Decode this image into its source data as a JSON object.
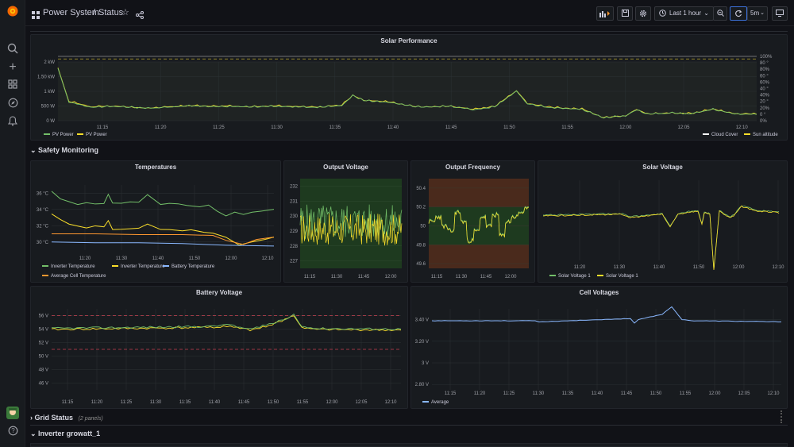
{
  "breadcrumb": {
    "folder": "Power System",
    "separator": "/",
    "dashboard": "Status"
  },
  "toolbar": {
    "time_range": "Last 1 hour",
    "refresh": "5m"
  },
  "rows": {
    "safety": "Safety Monitoring",
    "grid": "Grid Status",
    "grid_note": "(2 panels)",
    "inverter": "Inverter growatt_1"
  },
  "colors": {
    "green": "#73bf69",
    "yellow": "#fade2a",
    "blue": "#8ab8ff",
    "orange": "#ff9830",
    "white": "#ffffff",
    "red": "#f2495c"
  },
  "chart_data": [
    {
      "id": "solar",
      "type": "line",
      "title": "Solar Performance",
      "xticks": [
        "11:15",
        "11:20",
        "11:25",
        "11:30",
        "11:35",
        "11:40",
        "11:45",
        "11:50",
        "11:55",
        "12:00",
        "12:05",
        "12:10"
      ],
      "yleft": {
        "ticks": [
          "2 kW",
          "1.50 kW",
          "1 kW",
          "500 W",
          "0 W"
        ],
        "range": [
          0,
          2000
        ]
      },
      "yright": {
        "ticks": [
          "100%",
          "80 °",
          "80%",
          "60 °",
          "60%",
          "40 °",
          "40%",
          "20 °",
          "20%",
          "0 °",
          "0%"
        ],
        "range": [
          0,
          100
        ]
      },
      "legend_left": [
        "PV Power",
        "PV Power"
      ],
      "legend_right": [
        "Cloud Cover",
        "Sun altitude"
      ],
      "series": [
        {
          "name": "PV Power",
          "color": "yellow",
          "x": [
            0,
            1,
            2,
            3,
            5,
            8,
            10,
            12,
            14,
            16,
            18,
            20,
            22,
            24,
            26,
            27,
            28,
            30,
            33,
            36,
            38,
            40,
            42,
            43,
            45,
            48,
            50,
            52,
            53,
            54,
            56,
            58,
            60,
            62,
            64
          ],
          "y": [
            1800,
            650,
            570,
            460,
            490,
            430,
            460,
            510,
            480,
            490,
            470,
            500,
            470,
            460,
            520,
            860,
            690,
            640,
            470,
            490,
            380,
            470,
            1020,
            580,
            450,
            390,
            100,
            170,
            380,
            230,
            260,
            240,
            390,
            230,
            220
          ]
        },
        {
          "name": "PV Power",
          "color": "green",
          "x": [
            0,
            1,
            3,
            5,
            8,
            10,
            12,
            14,
            16,
            18,
            20,
            22,
            24,
            26,
            27,
            28,
            30,
            33,
            36,
            38,
            40,
            42,
            43,
            45,
            48,
            50,
            52,
            53,
            54,
            56,
            58,
            60,
            62,
            64
          ],
          "y": [
            1780,
            630,
            450,
            480,
            420,
            450,
            500,
            470,
            480,
            460,
            490,
            460,
            450,
            510,
            850,
            680,
            630,
            460,
            480,
            370,
            460,
            1000,
            560,
            440,
            380,
            90,
            160,
            370,
            220,
            250,
            230,
            380,
            220,
            210
          ]
        },
        {
          "name": "Cloud Cover",
          "color": "white",
          "x": [
            0,
            64
          ],
          "y": [
            100,
            100
          ]
        },
        {
          "name": "Sun altitude",
          "color": "yellow",
          "x": [
            0,
            64
          ],
          "y": [
            96,
            96
          ]
        }
      ]
    },
    {
      "id": "temperatures",
      "type": "line",
      "title": "Temperatures",
      "xticks": [
        "11:20",
        "11:30",
        "11:40",
        "11:50",
        "12:00",
        "12:10"
      ],
      "yticks": [
        "36 °C",
        "34 °C",
        "32 °C",
        "30 °C"
      ],
      "range": [
        29,
        37
      ],
      "legend": [
        "Inverter Temperature",
        "Inverter Temperature",
        "Battery Temperature",
        "Average Cell Temperature"
      ],
      "series": [
        {
          "name": "Inverter Temperature",
          "color": "green",
          "x": [
            0,
            2,
            4,
            6,
            8,
            10,
            12,
            13,
            14,
            16,
            18,
            20,
            22,
            25,
            27,
            29,
            31,
            34,
            36,
            38,
            40,
            42,
            44,
            46,
            48,
            51
          ],
          "y": [
            36.2,
            35.2,
            35.0,
            34.7,
            34.9,
            34.6,
            34.8,
            35.9,
            34.7,
            34.8,
            34.9,
            34.8,
            35.7,
            34.6,
            34.8,
            34.7,
            34.5,
            34.3,
            34.6,
            33.7,
            33.3,
            33.6,
            33.5,
            33.7,
            33.8,
            34.0
          ]
        },
        {
          "name": "Inverter Temperature",
          "color": "yellow",
          "x": [
            0,
            2,
            4,
            6,
            8,
            10,
            12,
            13,
            14,
            16,
            18,
            20,
            22,
            25,
            27,
            30,
            32,
            35,
            37,
            40,
            43,
            46,
            49,
            51
          ],
          "y": [
            33.4,
            32.7,
            32.3,
            32.0,
            31.8,
            31.9,
            31.8,
            32.7,
            31.5,
            31.6,
            31.7,
            31.6,
            32.2,
            31.5,
            31.4,
            31.3,
            31.4,
            31.2,
            31.1,
            30.6,
            29.6,
            29.9,
            30.3,
            30.5
          ]
        },
        {
          "name": "Battery Temperature",
          "color": "blue",
          "x": [
            0,
            10,
            20,
            30,
            40,
            51
          ],
          "y": [
            30.0,
            29.9,
            29.9,
            29.8,
            29.6,
            29.5
          ]
        },
        {
          "name": "Average Cell Temperature",
          "color": "orange",
          "x": [
            0,
            10,
            20,
            30,
            37,
            40,
            44,
            47,
            51
          ],
          "y": [
            31.0,
            31.0,
            30.9,
            30.9,
            30.8,
            30.2,
            29.7,
            30.3,
            30.6
          ]
        }
      ]
    },
    {
      "id": "output_voltage",
      "type": "line",
      "title": "Output Voltage",
      "xticks": [
        "11:15",
        "11:30",
        "11:45",
        "12:00"
      ],
      "yticks": [
        "232",
        "231",
        "230",
        "229",
        "228",
        "227"
      ],
      "range": [
        226.5,
        232.5
      ]
    },
    {
      "id": "output_frequency",
      "type": "line",
      "title": "Output Frequency",
      "xticks": [
        "11:15",
        "11:30",
        "11:45",
        "12:00"
      ],
      "yticks": [
        "50.4",
        "50.2",
        "50",
        "49.8",
        "49.6"
      ],
      "range": [
        49.55,
        50.5
      ]
    },
    {
      "id": "solar_voltage",
      "type": "line",
      "title": "Solar Voltage",
      "xticks": [
        "11:20",
        "11:30",
        "11:40",
        "11:50",
        "12:00",
        "12:10"
      ],
      "legend": [
        "Solar Voltage 1",
        "Solar Voltage 1"
      ]
    },
    {
      "id": "battery_voltage",
      "type": "line",
      "title": "Battery Voltage",
      "xticks": [
        "11:15",
        "11:20",
        "11:25",
        "11:30",
        "11:35",
        "11:40",
        "11:45",
        "11:50",
        "11:55",
        "12:00",
        "12:05",
        "12:10"
      ],
      "yticks": [
        "56 V",
        "54 V",
        "52 V",
        "50 V",
        "48 V",
        "46 V"
      ],
      "range": [
        45,
        57
      ],
      "thresholds": [
        56,
        51
      ]
    },
    {
      "id": "cell_voltages",
      "type": "line",
      "title": "Cell Voltages",
      "xticks": [
        "11:15",
        "11:20",
        "11:25",
        "11:30",
        "11:35",
        "11:40",
        "11:45",
        "11:50",
        "11:55",
        "12:00",
        "12:05",
        "12:10"
      ],
      "yticks": [
        "3.40 V",
        "3.20 V",
        "3 V",
        "2.80 V"
      ],
      "range": [
        2.75,
        3.5
      ],
      "legend": [
        "Average"
      ]
    }
  ]
}
